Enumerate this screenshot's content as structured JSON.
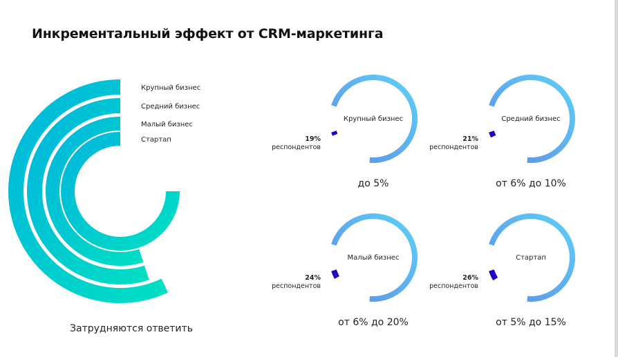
{
  "title": "Инкрементальный эффект от CRM-маркетинга",
  "colors": {
    "radial_gradient_outer": "#00b4de",
    "radial_gradient_inner": "#00e0c2",
    "donut_light_start": "#5ed0f6",
    "donut_light_end": "#5e8ee6",
    "donut_dark": "#2400c0",
    "border": "#dcdcdc"
  },
  "chart_data": [
    {
      "type": "radial_bar",
      "title": "",
      "categories": [
        "Крупный бизнес",
        "Средний бизнес",
        "Малый бизнес",
        "Стартап"
      ],
      "values": [
        57,
        55,
        55,
        75
      ],
      "value_labels": [
        "57%",
        "55%",
        "55%",
        "75%"
      ],
      "caption": "Затрудняются ответить"
    },
    {
      "type": "donut",
      "panels": [
        {
          "center_label": "Крупный бизнес",
          "highlight_value": 19,
          "highlight_label": "19%",
          "highlight_sublabel": "респондентов",
          "caption": "до 5%"
        },
        {
          "center_label": "Средний бизнес",
          "highlight_value": 21,
          "highlight_label": "21%",
          "highlight_sublabel": "респондентов",
          "caption": "от 6% до 10%"
        },
        {
          "center_label": "Малый бизнес",
          "highlight_value": 24,
          "highlight_label": "24%",
          "highlight_sublabel": "респондентов",
          "caption": "от 6% до 20%"
        },
        {
          "center_label": "Стартап",
          "highlight_value": 26,
          "highlight_label": "26%",
          "highlight_sublabel": "респондентов",
          "caption": "от 5% до 15%"
        }
      ]
    }
  ]
}
